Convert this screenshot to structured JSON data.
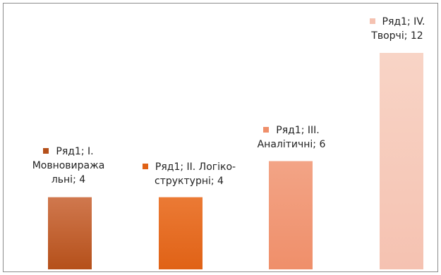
{
  "chart_data": {
    "type": "bar",
    "categories": [
      "I. Мовновиражальні",
      "II. Логіко-структурні",
      "III. Аналітичні",
      "IV. Творчі"
    ],
    "series": [
      {
        "name": "Ряд1",
        "values": [
          4,
          4,
          6,
          12
        ]
      }
    ],
    "data_labels": [
      "Ряд1; I. Мовновиража льні; 4",
      "Ряд1; II. Логіко-структурні; 4",
      "Ряд1; III. Аналітичні; 6",
      "Ряд1; IV. Творчі; 12"
    ],
    "colors": [
      {
        "light": "#d0784e",
        "dark": "#b5501a"
      },
      {
        "light": "#eb7a35",
        "dark": "#e06216"
      },
      {
        "light": "#f3a486",
        "dark": "#ef8f6a"
      },
      {
        "light": "#f8d4c6",
        "dark": "#f5c2b1"
      }
    ],
    "ylim": [
      0,
      12
    ],
    "grid": false,
    "axes_visible": false
  }
}
